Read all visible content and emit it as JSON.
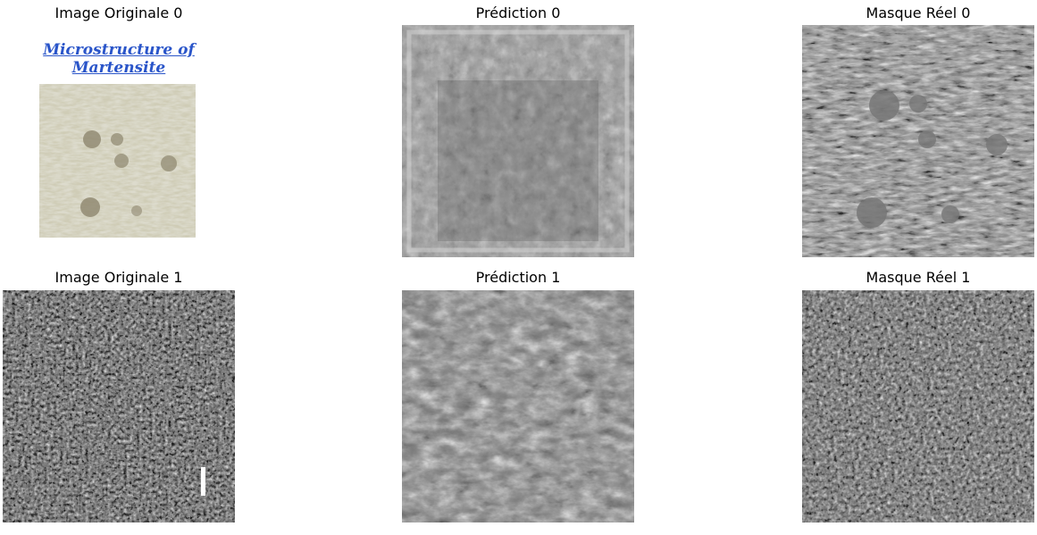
{
  "panels": [
    {
      "title": "Image Originale 0",
      "image_text": "Microstructure of Martensite"
    },
    {
      "title": "Prédiction 0",
      "image_text": ""
    },
    {
      "title": "Masque Réel 0"
    },
    {
      "title": "Image Originale 1"
    },
    {
      "title": "Prédiction 1"
    },
    {
      "title": "Masque Réel 1"
    }
  ],
  "colors": {
    "caption_blue": "#2a55c9",
    "sample_tint": "#b8b59c"
  }
}
